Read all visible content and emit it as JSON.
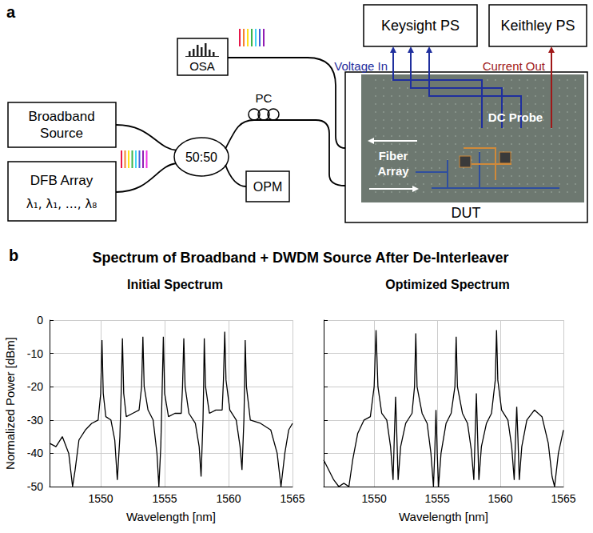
{
  "diagram": {
    "letter": "a",
    "keysight": "Keysight PS",
    "keithley": "Keithley PS",
    "voltage_in": "Voltage In",
    "current_out": "Current Out",
    "osa": "OSA",
    "broadband": "Broadband Source",
    "pc": "PC",
    "splitter": "50:50",
    "dfb": "DFB Array",
    "dfb_channels": "λ₁, λ₁, …, λ₈",
    "opm": "OPM",
    "dc_probe": "DC Probe",
    "fiber_array": "Fiber Array",
    "dut": "DUT"
  },
  "figure_b": {
    "letter": "b",
    "title": "Spectrum of Broadband + DWDM Source After De-Interleaver"
  },
  "chart_data": [
    {
      "type": "line",
      "title": "Initial Spectrum",
      "x_label": "Wavelength [nm]",
      "y_label": "Normalized Power [dBm]",
      "xlim": [
        1546,
        1565
      ],
      "ylim": [
        -50,
        0
      ],
      "xticks": [
        1550,
        1555,
        1560,
        1565
      ],
      "yticks": [
        -50,
        -40,
        -30,
        -20,
        -10,
        0
      ],
      "grid": true,
      "color": "#000000",
      "x": [
        1546.0,
        1546.5,
        1547.0,
        1547.5,
        1547.8,
        1548.0,
        1548.3,
        1548.8,
        1549.3,
        1549.8,
        1550.0,
        1550.1,
        1550.2,
        1550.4,
        1550.8,
        1551.1,
        1551.3,
        1551.5,
        1551.6,
        1551.7,
        1551.8,
        1552.0,
        1552.5,
        1553.0,
        1553.2,
        1553.3,
        1553.4,
        1553.7,
        1554.1,
        1554.4,
        1554.55,
        1554.7,
        1554.8,
        1554.9,
        1555.0,
        1555.3,
        1555.8,
        1556.3,
        1556.4,
        1556.5,
        1556.6,
        1556.9,
        1557.4,
        1557.7,
        1557.85,
        1558.0,
        1558.05,
        1558.1,
        1558.2,
        1558.5,
        1559.0,
        1559.5,
        1559.6,
        1559.7,
        1559.8,
        1560.1,
        1560.6,
        1560.9,
        1561.05,
        1561.2,
        1561.25,
        1561.3,
        1561.4,
        1561.7,
        1562.5,
        1563.3,
        1563.8,
        1564.1,
        1564.4,
        1564.7,
        1565.0
      ],
      "values": [
        -37,
        -38,
        -35,
        -40,
        -50,
        -45,
        -36,
        -33,
        -31,
        -30,
        -22,
        -6,
        -22,
        -29,
        -30,
        -36,
        -48,
        -35,
        -22,
        -5.5,
        -22,
        -29,
        -28,
        -27,
        -20,
        -5,
        -20,
        -27,
        -30,
        -40,
        -50,
        -38,
        -22,
        -5,
        -22,
        -29,
        -28,
        -28,
        -20,
        -5.5,
        -20,
        -28,
        -31,
        -38,
        -47,
        -30,
        -20,
        -5.5,
        -20,
        -28,
        -27,
        -27,
        -18,
        -3.5,
        -18,
        -27,
        -30,
        -38,
        -45,
        -30,
        -20,
        -6,
        -20,
        -30,
        -31,
        -33,
        -40,
        -50,
        -40,
        -33,
        -31
      ]
    },
    {
      "type": "line",
      "title": "Optimized Spectrum",
      "x_label": "Wavelength [nm]",
      "tick_labels": "x",
      "xlim": [
        1546,
        1565
      ],
      "ylim": [
        -50,
        0
      ],
      "xticks": [
        1550,
        1555,
        1560,
        1565
      ],
      "yticks": [
        -50,
        -40,
        -30,
        -20,
        -10,
        0
      ],
      "grid": true,
      "color": "#000000",
      "x": [
        1546.0,
        1546.4,
        1546.8,
        1547.2,
        1547.6,
        1548.0,
        1548.3,
        1548.7,
        1549.2,
        1549.7,
        1550.0,
        1550.15,
        1550.3,
        1550.6,
        1551.0,
        1551.3,
        1551.5,
        1551.6,
        1551.7,
        1551.8,
        1551.9,
        1552.1,
        1552.5,
        1553.0,
        1553.2,
        1553.3,
        1553.4,
        1553.8,
        1554.2,
        1554.5,
        1554.7,
        1554.8,
        1554.9,
        1555.0,
        1555.1,
        1555.3,
        1555.7,
        1556.1,
        1556.4,
        1556.5,
        1556.6,
        1557.0,
        1557.4,
        1557.7,
        1557.9,
        1558.0,
        1558.1,
        1558.2,
        1558.3,
        1558.5,
        1558.9,
        1559.3,
        1559.6,
        1559.7,
        1559.8,
        1560.1,
        1560.6,
        1560.9,
        1561.1,
        1561.2,
        1561.3,
        1561.4,
        1561.5,
        1561.7,
        1562.1,
        1562.7,
        1563.3,
        1563.8,
        1564.1,
        1564.3,
        1564.6,
        1565.0
      ],
      "values": [
        -42,
        -45,
        -48,
        -50,
        -49,
        -50,
        -42,
        -34,
        -30,
        -29,
        -20,
        -3,
        -20,
        -28,
        -30,
        -38,
        -48,
        -35,
        -23,
        -35,
        -48,
        -38,
        -31,
        -28,
        -20,
        -4,
        -20,
        -28,
        -31,
        -40,
        -50,
        -40,
        -27,
        -40,
        -50,
        -40,
        -31,
        -28,
        -20,
        -5,
        -20,
        -28,
        -31,
        -39,
        -48,
        -35,
        -22,
        -35,
        -48,
        -38,
        -31,
        -28,
        -18,
        -3,
        -18,
        -27,
        -30,
        -38,
        -48,
        -36,
        -26,
        -36,
        -48,
        -38,
        -30,
        -27,
        -29,
        -37,
        -47,
        -50,
        -40,
        -33
      ]
    }
  ]
}
